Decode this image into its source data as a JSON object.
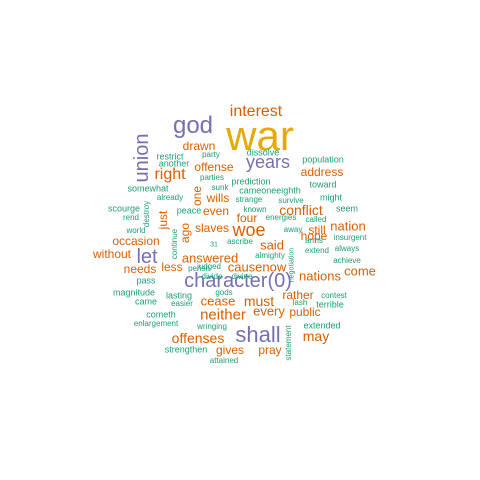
{
  "palette": {
    "orange": "#D95F02",
    "purple": "#7570B3",
    "green": "#1B9E77",
    "gold": "#E6AB02"
  },
  "words": [
    {
      "text": "war",
      "color": "gold"
    },
    {
      "text": "god",
      "color": "purple"
    },
    {
      "text": "interest",
      "color": "orange"
    },
    {
      "text": "union",
      "color": "purple"
    },
    {
      "text": "years",
      "color": "purple"
    },
    {
      "text": "drawn",
      "color": "orange"
    },
    {
      "text": "right",
      "color": "orange"
    },
    {
      "text": "offense",
      "color": "orange"
    },
    {
      "text": "address",
      "color": "orange"
    },
    {
      "text": "let",
      "color": "purple"
    },
    {
      "text": "character(0)",
      "color": "purple"
    },
    {
      "text": "shall",
      "color": "purple"
    },
    {
      "text": "woe",
      "color": "orange"
    },
    {
      "text": "slaves",
      "color": "orange"
    },
    {
      "text": "conflict",
      "color": "orange"
    },
    {
      "text": "nation",
      "color": "orange"
    },
    {
      "text": "occasion",
      "color": "orange"
    },
    {
      "text": "without",
      "color": "orange"
    },
    {
      "text": "answered",
      "color": "orange"
    },
    {
      "text": "said",
      "color": "orange"
    },
    {
      "text": "hope",
      "color": "orange"
    },
    {
      "text": "needs",
      "color": "orange"
    },
    {
      "text": "less",
      "color": "orange"
    },
    {
      "text": "causenow",
      "color": "orange"
    },
    {
      "text": "nations",
      "color": "orange"
    },
    {
      "text": "come",
      "color": "orange"
    },
    {
      "text": "cease",
      "color": "orange"
    },
    {
      "text": "must",
      "color": "orange"
    },
    {
      "text": "rather",
      "color": "orange"
    },
    {
      "text": "neither",
      "color": "orange"
    },
    {
      "text": "every",
      "color": "orange"
    },
    {
      "text": "public",
      "color": "orange"
    },
    {
      "text": "offenses",
      "color": "orange"
    },
    {
      "text": "may",
      "color": "orange"
    },
    {
      "text": "gives",
      "color": "orange"
    },
    {
      "text": "pray",
      "color": "orange"
    },
    {
      "text": "wills",
      "color": "orange"
    },
    {
      "text": "even",
      "color": "orange"
    },
    {
      "text": "four",
      "color": "orange"
    },
    {
      "text": "still",
      "color": "orange"
    },
    {
      "text": "one",
      "color": "orange"
    },
    {
      "text": "ago",
      "color": "orange"
    },
    {
      "text": "just",
      "color": "orange"
    },
    {
      "text": "restrict",
      "color": "green"
    },
    {
      "text": "party",
      "color": "green"
    },
    {
      "text": "another",
      "color": "green"
    },
    {
      "text": "parties",
      "color": "green"
    },
    {
      "text": "dissolve",
      "color": "green"
    },
    {
      "text": "population",
      "color": "green"
    },
    {
      "text": "sunk",
      "color": "green"
    },
    {
      "text": "prediction",
      "color": "green"
    },
    {
      "text": "cameoneeighth",
      "color": "green"
    },
    {
      "text": "toward",
      "color": "green"
    },
    {
      "text": "somewhat",
      "color": "green"
    },
    {
      "text": "already",
      "color": "green"
    },
    {
      "text": "strange",
      "color": "green"
    },
    {
      "text": "survive",
      "color": "green"
    },
    {
      "text": "might",
      "color": "green"
    },
    {
      "text": "scourge",
      "color": "green"
    },
    {
      "text": "seem",
      "color": "green"
    },
    {
      "text": "rend",
      "color": "green"
    },
    {
      "text": "destroy",
      "color": "green"
    },
    {
      "text": "peace",
      "color": "green"
    },
    {
      "text": "known",
      "color": "green"
    },
    {
      "text": "energies",
      "color": "green"
    },
    {
      "text": "called",
      "color": "green"
    },
    {
      "text": "insurgent",
      "color": "green"
    },
    {
      "text": "world",
      "color": "green"
    },
    {
      "text": "31",
      "color": "green"
    },
    {
      "text": "away",
      "color": "green"
    },
    {
      "text": "arms",
      "color": "green"
    },
    {
      "text": "continue",
      "color": "green"
    },
    {
      "text": "judged",
      "color": "green"
    },
    {
      "text": "ascribe",
      "color": "green"
    },
    {
      "text": "extend",
      "color": "green"
    },
    {
      "text": "always",
      "color": "green"
    },
    {
      "text": "divide",
      "color": "green"
    },
    {
      "text": "divine",
      "color": "green"
    },
    {
      "text": "almighty",
      "color": "green"
    },
    {
      "text": "pass",
      "color": "green"
    },
    {
      "text": "perish",
      "color": "green"
    },
    {
      "text": "gods",
      "color": "green"
    },
    {
      "text": "achieve",
      "color": "green"
    },
    {
      "text": "negotiation",
      "color": "green"
    },
    {
      "text": "magnitude",
      "color": "green"
    },
    {
      "text": "lasting",
      "color": "green"
    },
    {
      "text": "lash",
      "color": "green"
    },
    {
      "text": "came",
      "color": "green"
    },
    {
      "text": "easier",
      "color": "green"
    },
    {
      "text": "terrible",
      "color": "green"
    },
    {
      "text": "contest",
      "color": "green"
    },
    {
      "text": "cometh",
      "color": "green"
    },
    {
      "text": "enlargement",
      "color": "green"
    },
    {
      "text": "wringing",
      "color": "green"
    },
    {
      "text": "extended",
      "color": "green"
    },
    {
      "text": "strengthen",
      "color": "green"
    },
    {
      "text": "statement",
      "color": "green"
    },
    {
      "text": "attained",
      "color": "green"
    },
    {
      "text": "borne",
      "color": "green"
    }
  ]
}
